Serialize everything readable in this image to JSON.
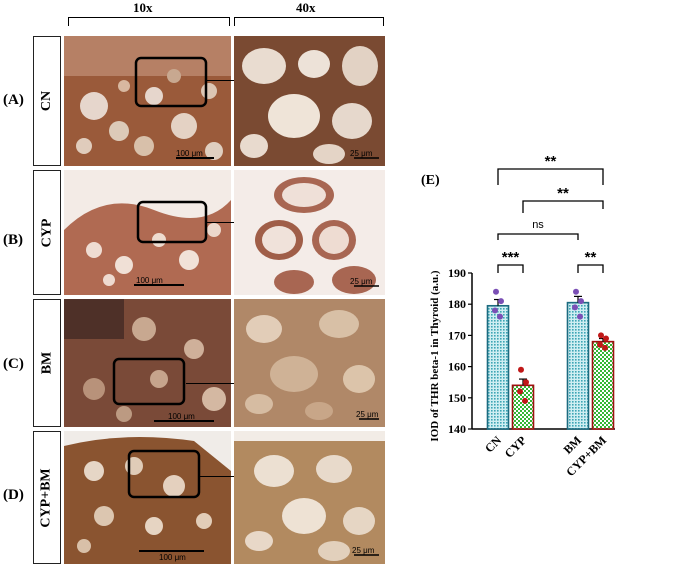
{
  "columns": {
    "low": "10x",
    "high": "40x"
  },
  "rows": [
    {
      "letter": "(A)",
      "group": "CN",
      "scale_low": "100 μm",
      "scale_high": "25 μm"
    },
    {
      "letter": "(B)",
      "group": "CYP",
      "scale_low": "100 μm",
      "scale_high": "25 μm"
    },
    {
      "letter": "(C)",
      "group": "BM",
      "scale_low": "100 μm",
      "scale_high": "25 μm"
    },
    {
      "letter": "(D)",
      "group": "CYP+BM",
      "scale_low": "100 μm",
      "scale_high": "25 μm"
    }
  ],
  "panel_e_label": "(E)",
  "chart_data": {
    "type": "bar",
    "categories": [
      "CN",
      "CYP",
      "BM",
      "CYP+BM"
    ],
    "values": [
      179.5,
      154,
      180.5,
      168
    ],
    "errors": [
      2,
      2,
      2,
      1
    ],
    "points": [
      [
        184,
        181,
        178,
        176
      ],
      [
        159,
        155,
        152,
        149
      ],
      [
        184,
        181,
        179,
        176
      ],
      [
        170,
        169,
        167,
        166
      ]
    ],
    "ylabel": "IOD of THR beta-1 in Thyroid (a.u.)",
    "xlabel": "",
    "ylim": [
      140,
      190
    ],
    "yticks": [
      "140",
      "150",
      "160",
      "170",
      "180",
      "190"
    ],
    "bar_colors": [
      "#3da5b5",
      "#35b835",
      "#3da5b5",
      "#35b835"
    ],
    "bar_edge_colors": [
      "#1c6b80",
      "#a01010",
      "#1c6b80",
      "#a01010"
    ],
    "point_colors": [
      "#7a4fb5",
      "#c01818",
      "#7a4fb5",
      "#c01818"
    ],
    "significance": [
      {
        "from": "CN",
        "to": "CYP+BM",
        "label": "**"
      },
      {
        "from": "CYP",
        "to": "CYP+BM",
        "label": "**"
      },
      {
        "from": "CN",
        "to": "BM",
        "label": "ns"
      },
      {
        "from": "CN",
        "to": "CYP",
        "label": "***"
      },
      {
        "from": "BM",
        "to": "CYP+BM",
        "label": "**"
      }
    ]
  }
}
